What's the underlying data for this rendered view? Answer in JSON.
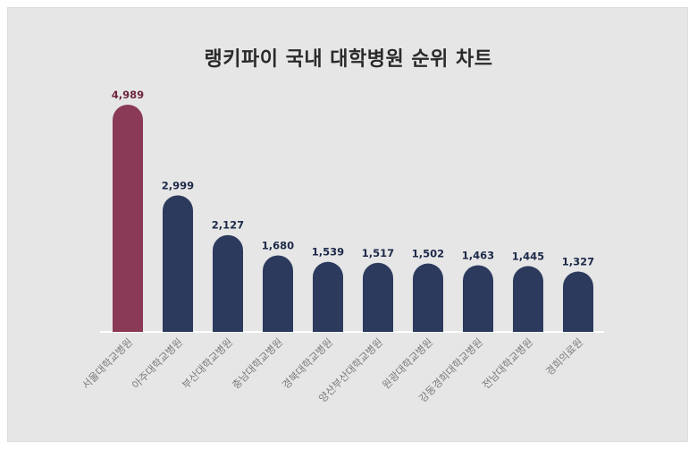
{
  "chart_data": {
    "type": "bar",
    "title": "랭키파이 국내 대학병원 순위 차트",
    "categories": [
      "서울대학교병원",
      "아주대학교병원",
      "부산대학교병원",
      "충남대학교병원",
      "경북대학교병원",
      "양산부산대학교병원",
      "원광대학교병원",
      "강동경희대학교병원",
      "전남대학교병원",
      "경희의료원"
    ],
    "values": [
      4989,
      2999,
      2127,
      1680,
      1539,
      1517,
      1502,
      1463,
      1445,
      1327
    ],
    "value_labels": [
      "4,989",
      "2,999",
      "2,127",
      "1,680",
      "1,539",
      "1,517",
      "1,502",
      "1,463",
      "1,445",
      "1,327"
    ],
    "ylim": [
      0,
      5000
    ],
    "grid": false,
    "colors": {
      "highlight_bar": "#8a3a56",
      "bar": "#2c3a5e",
      "highlight_label": "#6e2540",
      "label": "#1e2a4a",
      "tick": "#7a7a7a",
      "background": "#e6e6e6",
      "baseline": "#ffffff"
    }
  }
}
